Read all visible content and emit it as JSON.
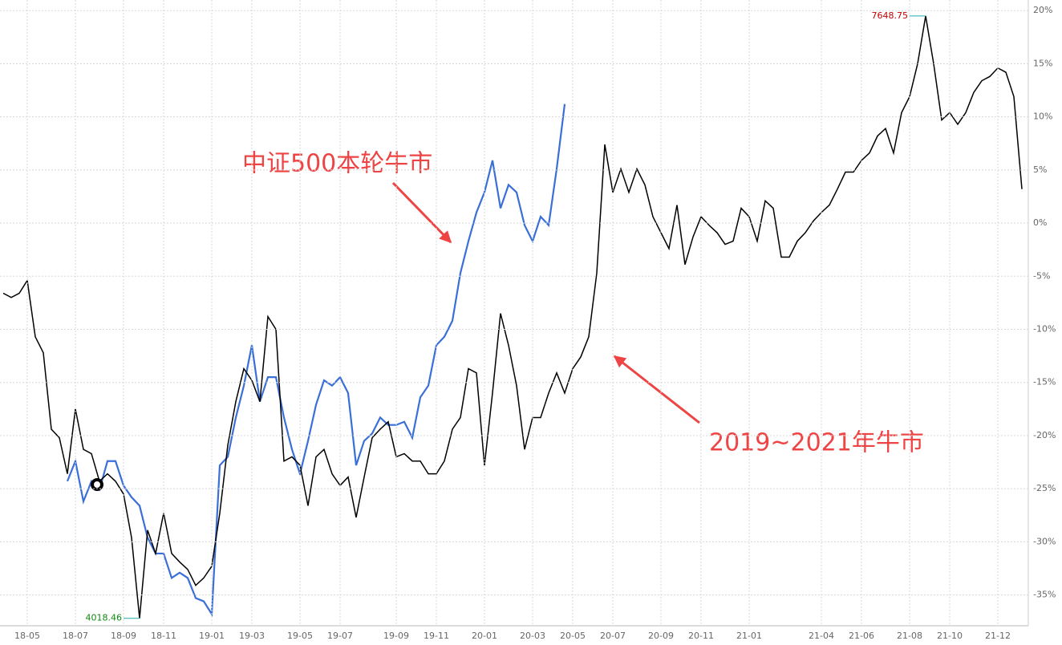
{
  "chart_data": {
    "type": "line",
    "categories": [
      null,
      null,
      null,
      "18-05",
      null,
      null,
      null,
      null,
      null,
      "18-07",
      null,
      null,
      null,
      null,
      null,
      "18-09",
      null,
      null,
      null,
      null,
      "18-11",
      null,
      null,
      null,
      null,
      null,
      "19-01",
      null,
      null,
      null,
      null,
      "19-03",
      null,
      null,
      null,
      null,
      null,
      "19-05",
      null,
      null,
      null,
      null,
      "19-07",
      null,
      null,
      null,
      null,
      null,
      null,
      "19-09",
      null,
      null,
      null,
      null,
      "19-11",
      null,
      null,
      null,
      null,
      null,
      "20-01",
      null,
      null,
      null,
      null,
      null,
      "20-03",
      null,
      null,
      null,
      null,
      "20-05",
      null,
      null,
      null,
      null,
      "20-07",
      null,
      null,
      null,
      null,
      null,
      "20-09",
      null,
      null,
      null,
      null,
      "20-11",
      null,
      null,
      null,
      null,
      null,
      "21-01",
      null,
      null,
      null,
      null,
      null,
      null,
      null,
      null,
      "21-04",
      null,
      null,
      null,
      null,
      "21-06",
      null,
      null,
      null,
      null,
      null,
      "21-08",
      null,
      null,
      null,
      null,
      "21-10",
      null,
      null,
      null,
      null,
      null,
      "21-12",
      null,
      null,
      null
    ],
    "series": [
      {
        "color": "#000000",
        "values": [
          -6.6,
          -7,
          -6.6,
          -5.4,
          -10.7,
          -12.2,
          -19.4,
          -20.2,
          -23.6,
          -17.5,
          -21.3,
          -21.7,
          -24.3,
          -23.6,
          -24.3,
          -25.5,
          -29.6,
          -37.2,
          -28.9,
          -31.1,
          -27.3,
          -31.1,
          -31.9,
          -32.6,
          -34.1,
          -33.4,
          -32.3,
          -27.3,
          -20.9,
          -16.8,
          -13.7,
          -14.8,
          -16.8,
          -8.8,
          -10,
          -22.4,
          -22,
          -22.8,
          -26.6,
          -22,
          -21.3,
          -23.6,
          -24.7,
          -23.9,
          -27.7,
          -23.9,
          -20.2,
          -19.4,
          -18.7,
          -22,
          -21.7,
          -22.4,
          -22.4,
          -23.6,
          -23.6,
          -22.4,
          -19.4,
          -18.3,
          -13.7,
          -14.1,
          -22.8,
          -16,
          -8.5,
          -11.5,
          -15.3,
          -21.3,
          -18.3,
          -18.3,
          -16,
          -14.1,
          -16,
          -13.7,
          -12.6,
          -10.7,
          -4.7,
          7.4,
          2.9,
          5.1,
          2.9,
          5.1,
          3.6,
          0.6,
          -0.9,
          -2.4,
          1.7,
          -3.9,
          -1.3,
          0.6,
          -0.2,
          -0.9,
          -2,
          -1.7,
          1.4,
          0.6,
          -1.7,
          2.1,
          1.4,
          -3.2,
          -3.2,
          -1.7,
          -0.9,
          0.2,
          1,
          1.7,
          3.2,
          4.8,
          4.8,
          5.9,
          6.6,
          8.2,
          8.9,
          6.6,
          10.4,
          11.9,
          15,
          19.5,
          15,
          9.7,
          10.4,
          9.3,
          10.4,
          12.3,
          13.4,
          13.8,
          14.6,
          14.2,
          11.9,
          3.2
        ]
      },
      {
        "color": "#3a6fd8",
        "values": [
          null,
          null,
          null,
          null,
          null,
          null,
          null,
          null,
          -24.3,
          -22.4,
          -26.2,
          -24.3,
          -25.1,
          -22.4,
          -22.4,
          -24.7,
          -25.8,
          -26.6,
          -29.6,
          -31.1,
          -31.1,
          -33.4,
          -32.9,
          -33.4,
          -35.3,
          -35.6,
          -36.8,
          -22.8,
          -22,
          -18.3,
          -15.3,
          -11.5,
          -16.8,
          -14.5,
          -14.5,
          -18.3,
          -21.3,
          -23.6,
          -20.5,
          -17.1,
          -14.8,
          -15.3,
          -14.5,
          -16,
          -22.8,
          -20.5,
          -19.8,
          -18.3,
          -19,
          -19,
          -18.7,
          -20.2,
          -16.4,
          -15.3,
          -11.5,
          -10.7,
          -9.2,
          -4.7,
          -1.7,
          1,
          2.9,
          5.9,
          1.4,
          3.6,
          2.9,
          -0.2,
          -1.7,
          0.6,
          -0.2,
          5.1,
          11.2,
          null,
          null,
          null,
          null,
          null,
          null,
          null,
          null,
          null,
          null,
          null,
          null,
          null,
          null,
          null,
          null,
          null,
          null,
          null,
          null,
          null,
          null,
          null,
          null,
          null,
          null,
          null,
          null,
          null,
          null,
          null,
          null,
          null,
          null,
          null,
          null,
          null,
          null,
          null,
          null,
          null,
          null,
          null,
          null,
          null,
          null,
          null,
          null,
          null,
          null,
          null,
          null,
          null,
          null,
          null,
          null,
          null
        ]
      }
    ],
    "ylim": [
      -37.9,
      21
    ],
    "yticks": [
      {
        "value": 20,
        "label": "20%"
      },
      {
        "value": 15,
        "label": "15%"
      },
      {
        "value": 10,
        "label": "10%"
      },
      {
        "value": 5,
        "label": "5%"
      },
      {
        "value": 0,
        "label": "0%"
      },
      {
        "value": -5,
        "label": "-5%"
      },
      {
        "value": -10,
        "label": "-10%"
      },
      {
        "value": -15,
        "label": "-15%"
      },
      {
        "value": -20,
        "label": "-20%"
      },
      {
        "value": -25,
        "label": "-25%"
      },
      {
        "value": -30,
        "label": "-30%"
      },
      {
        "value": -35,
        "label": "-35%"
      }
    ],
    "grid": true,
    "annotations": [
      {
        "text": "7648.75",
        "color": "#c00000"
      },
      {
        "text": "4018.46",
        "color": "#118811"
      }
    ],
    "callouts": [
      {
        "text": "中证500本轮牛市",
        "color": "#ee4444"
      },
      {
        "text": "2019~2021年牛市",
        "color": "#ee4444"
      }
    ]
  }
}
